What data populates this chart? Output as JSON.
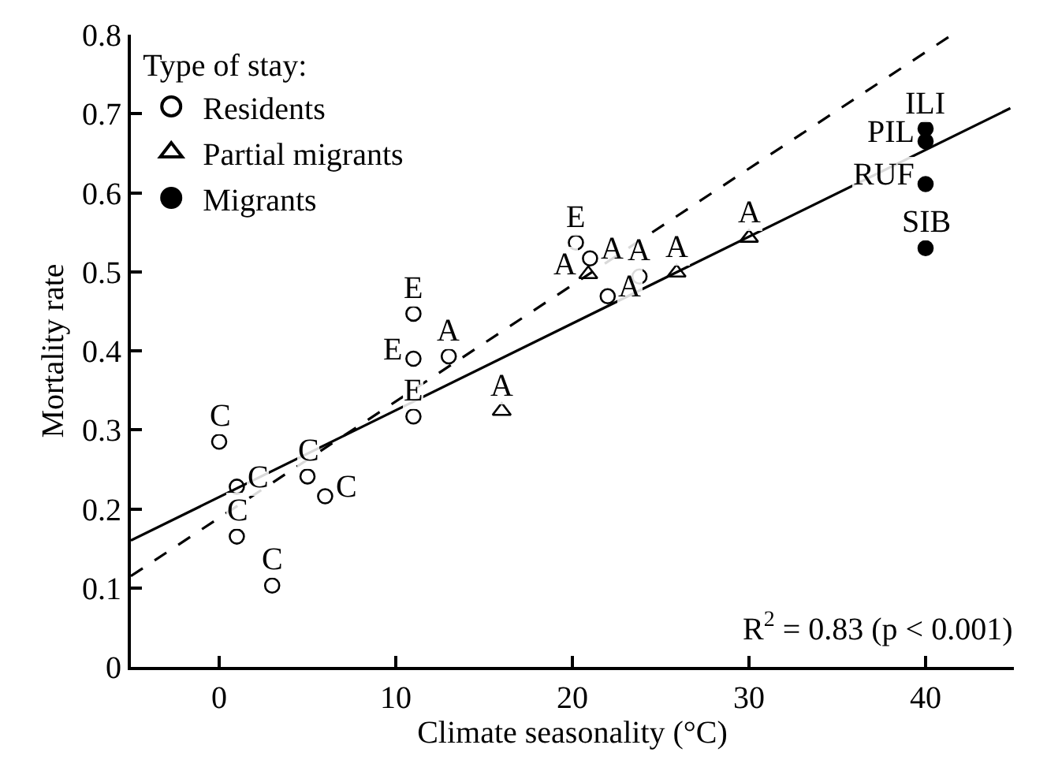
{
  "chart_data": {
    "type": "scatter",
    "xlabel": "Climate seasonality (°C)",
    "ylabel": "Mortality rate",
    "legend_title": "Type of stay:",
    "xlim": [
      -5,
      45
    ],
    "xticks": [
      0,
      10,
      20,
      30,
      40
    ],
    "ylim": [
      0,
      0.8
    ],
    "yticks": [
      0,
      0.1,
      0.2,
      0.3,
      0.4,
      0.5,
      0.6,
      0.7,
      0.8
    ],
    "legend": "top left",
    "series": [
      {
        "name": "Residents",
        "color": "#ffffff",
        "marker": "circle",
        "x": [
          0,
          1,
          1,
          3,
          5,
          6,
          11,
          11,
          11,
          13,
          20.2,
          21,
          22,
          23.8
        ],
        "values": [
          0.285,
          0.228,
          0.165,
          0.103,
          0.241,
          0.216,
          0.447,
          0.39,
          0.317,
          0.393,
          0.537,
          0.517,
          0.469,
          0.494
        ]
      },
      {
        "name": "Partial migrants",
        "color": "#ffffff",
        "marker": "triangle",
        "x": [
          16,
          20.9,
          25.9,
          30
        ],
        "values": [
          0.324,
          0.497,
          0.499,
          0.543
        ]
      },
      {
        "name": "Migrants",
        "color": "#000000",
        "marker": "circle",
        "x": [
          40,
          40,
          40,
          40
        ],
        "values": [
          0.681,
          0.665,
          0.611,
          0.53
        ]
      },
      {
        "type": "line",
        "color": "#000000",
        "line_style": "solid",
        "marker": "none",
        "x": [
          -5,
          44.8
        ],
        "values": [
          0.16,
          0.707
        ]
      },
      {
        "type": "line",
        "color": "#000000",
        "line_style": "dashed",
        "marker": "none",
        "x": [
          -5,
          41.5
        ],
        "values": [
          0.115,
          0.8
        ]
      }
    ],
    "annotations": [
      {
        "text": "C",
        "x": 0,
        "y": 0.285
      },
      {
        "text": "C",
        "x": 1,
        "y": 0.228
      },
      {
        "text": "C",
        "x": 1,
        "y": 0.165
      },
      {
        "text": "C",
        "x": 3,
        "y": 0.103
      },
      {
        "text": "C",
        "x": 5,
        "y": 0.241
      },
      {
        "text": "C",
        "x": 6,
        "y": 0.216
      },
      {
        "text": "E",
        "x": 11,
        "y": 0.447
      },
      {
        "text": "E",
        "x": 11,
        "y": 0.39
      },
      {
        "text": "E",
        "x": 11,
        "y": 0.317
      },
      {
        "text": "A",
        "x": 13,
        "y": 0.393
      },
      {
        "text": "E",
        "x": 20.2,
        "y": 0.537
      },
      {
        "text": "A",
        "x": 21,
        "y": 0.517
      },
      {
        "text": "A",
        "x": 22,
        "y": 0.469
      },
      {
        "text": "A",
        "x": 23.8,
        "y": 0.494
      },
      {
        "text": "A",
        "x": 16,
        "y": 0.324
      },
      {
        "text": "A",
        "x": 20.9,
        "y": 0.497
      },
      {
        "text": "A",
        "x": 25.9,
        "y": 0.499
      },
      {
        "text": "A",
        "x": 30,
        "y": 0.543
      },
      {
        "text": "ILI",
        "x": 40,
        "y": 0.681
      },
      {
        "text": "PIL",
        "x": 40,
        "y": 0.665
      },
      {
        "text": "RUF",
        "x": 40,
        "y": 0.611
      },
      {
        "text": "SIB",
        "x": 40,
        "y": 0.53
      },
      "R$^{2}$ = 0.83 (p < 0.001)"
    ]
  }
}
